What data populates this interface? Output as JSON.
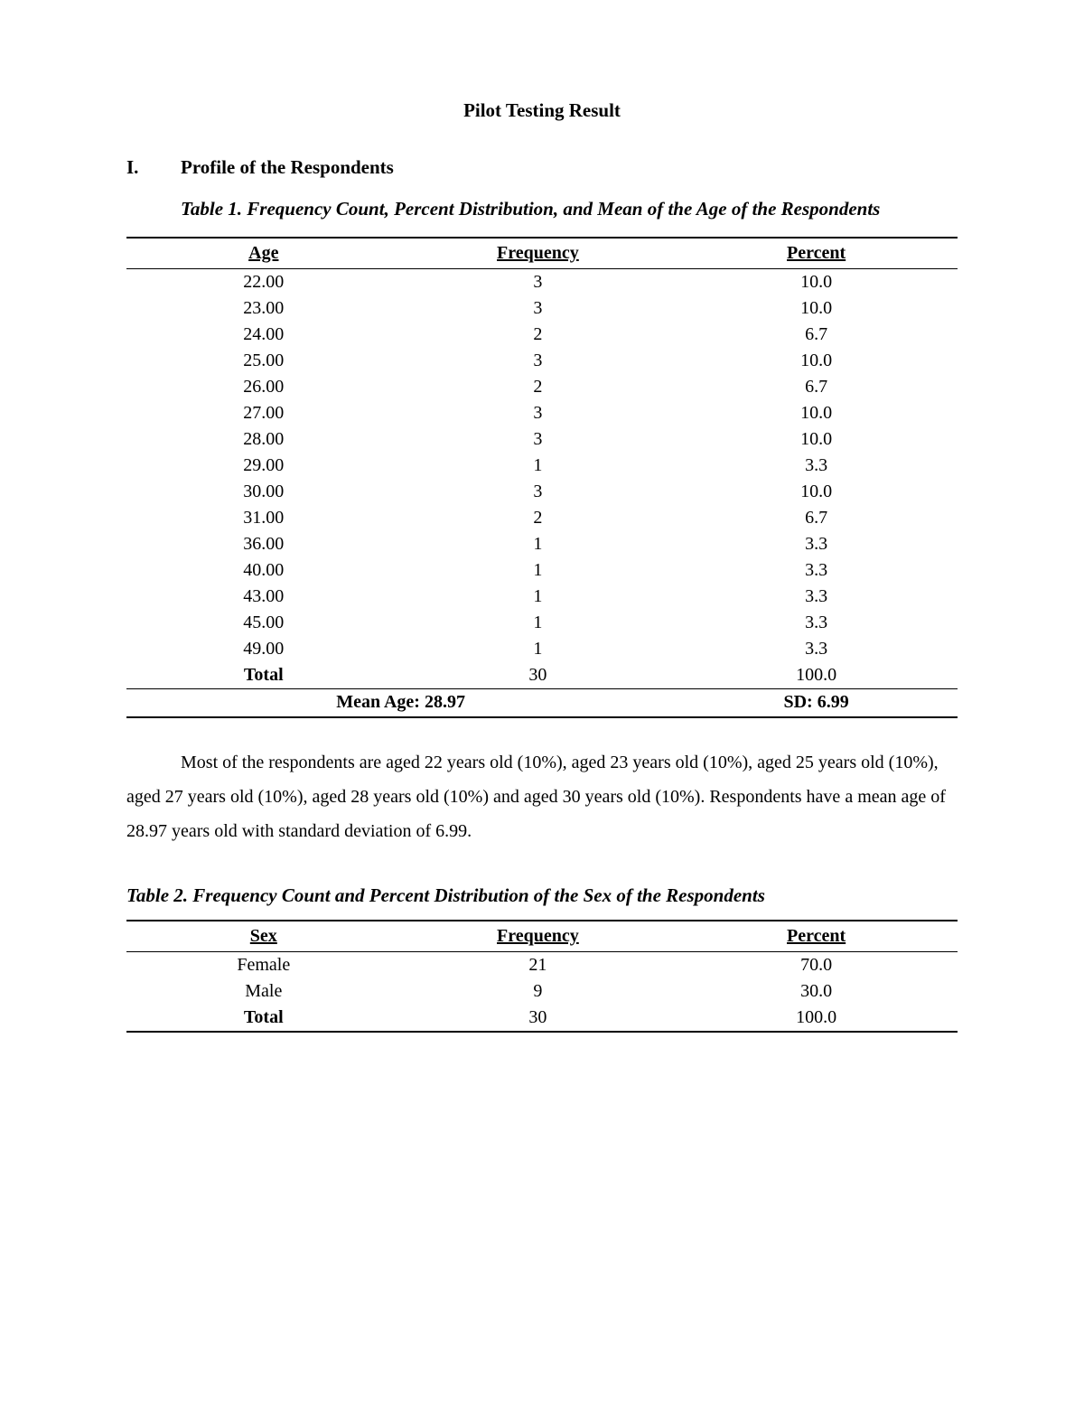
{
  "document_title": "Pilot Testing Result",
  "section_number": "I.",
  "section_title": "Profile of the Respondents",
  "table1": {
    "caption": "Table 1. Frequency Count, Percent Distribution, and Mean of the Age of the Respondents",
    "columns": [
      "Age",
      "Frequency",
      "Percent"
    ],
    "rows": [
      [
        "22.00",
        "3",
        "10.0"
      ],
      [
        "23.00",
        "3",
        "10.0"
      ],
      [
        "24.00",
        "2",
        "6.7"
      ],
      [
        "25.00",
        "3",
        "10.0"
      ],
      [
        "26.00",
        "2",
        "6.7"
      ],
      [
        "27.00",
        "3",
        "10.0"
      ],
      [
        "28.00",
        "3",
        "10.0"
      ],
      [
        "29.00",
        "1",
        "3.3"
      ],
      [
        "30.00",
        "3",
        "10.0"
      ],
      [
        "31.00",
        "2",
        "6.7"
      ],
      [
        "36.00",
        "1",
        "3.3"
      ],
      [
        "40.00",
        "1",
        "3.3"
      ],
      [
        "43.00",
        "1",
        "3.3"
      ],
      [
        "45.00",
        "1",
        "3.3"
      ],
      [
        "49.00",
        "1",
        "3.3"
      ]
    ],
    "total_label": "Total",
    "total_frequency": "30",
    "total_percent": "100.0",
    "mean_label": "Mean Age:  28.97",
    "sd_label": "SD: 6.99"
  },
  "paragraph1": "Most of the respondents are aged 22 years old (10%), aged 23 years old (10%), aged 25 years old (10%), aged 27 years old (10%), aged 28 years old (10%) and aged 30 years old (10%). Respondents have a mean age of 28.97 years old with standard deviation of 6.99.",
  "table2": {
    "caption": "Table 2. Frequency Count and Percent Distribution of the Sex of the Respondents",
    "columns": [
      "Sex",
      "Frequency",
      "Percent"
    ],
    "rows": [
      [
        "Female",
        "21",
        "70.0"
      ],
      [
        "Male",
        "9",
        "30.0"
      ]
    ],
    "total_label": "Total",
    "total_frequency": "30",
    "total_percent": "100.0"
  }
}
